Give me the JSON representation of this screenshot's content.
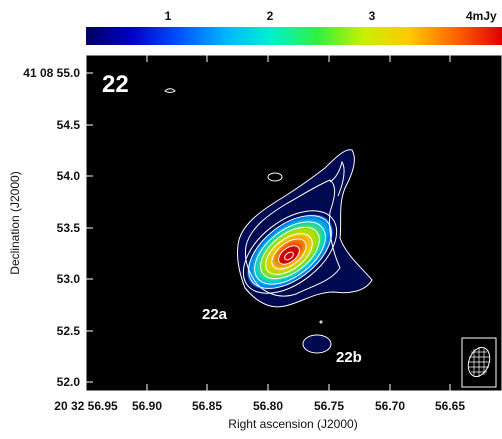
{
  "colorbar": {
    "ticks": [
      "1",
      "2",
      "3",
      "4mJy"
    ],
    "colors": [
      "#000060",
      "#0000c8",
      "#0050ff",
      "#00b4ff",
      "#00f0d0",
      "#30f040",
      "#c8f000",
      "#ffc800",
      "#ff6400",
      "#e00000"
    ]
  },
  "panel": {
    "label": "22",
    "component_a": "22a",
    "component_b": "22b"
  },
  "x_axis": {
    "title": "Right ascension (J2000)",
    "ticks": [
      "20 32 56.95",
      "56.90",
      "56.85",
      "56.80",
      "56.75",
      "56.70",
      "56.65"
    ]
  },
  "y_axis": {
    "title": "Declination (J2000)",
    "ticks": [
      "41 08 55.0",
      "54.5",
      "54.0",
      "53.5",
      "53.0",
      "52.5",
      "52.0"
    ]
  },
  "colors": {
    "background": "#000000",
    "contour": "#ffffff",
    "frame": "#ffffff"
  },
  "icons": {
    "beam": "beam-ellipse-icon"
  }
}
